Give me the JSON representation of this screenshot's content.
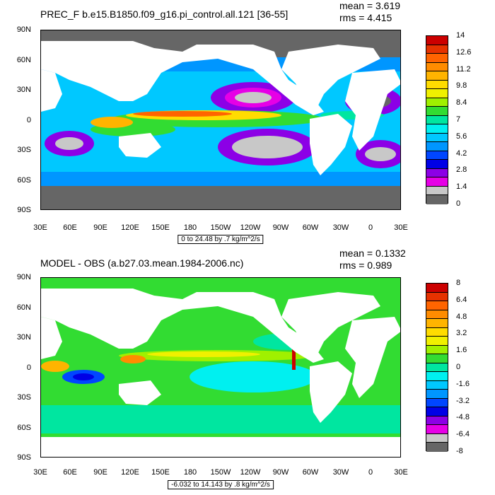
{
  "chart_data": [
    {
      "type": "heatmap",
      "title": "PREC_F b.e15.B1850.f09_g16.pi_control.all.121 [36-55]",
      "mean_text": "mean = 3.619",
      "rms_text": "rms = 4.415",
      "range_note": "0 to 24.48 by .7 kg/m^2/s",
      "y_tick_labels": [
        "90N",
        "60N",
        "30N",
        "0",
        "30S",
        "60S",
        "90S"
      ],
      "x_tick_labels": [
        "30E",
        "60E",
        "90E",
        "120E",
        "150E",
        "180",
        "150W",
        "120W",
        "90W",
        "60W",
        "30W",
        "0",
        "30E"
      ],
      "colorbar_labels": [
        "14",
        "12.6",
        "11.2",
        "9.8",
        "8.4",
        "7",
        "5.6",
        "4.2",
        "2.8",
        "1.4",
        "0"
      ],
      "colorbar_colors": [
        "#cc0000",
        "#e63200",
        "#ff6400",
        "#ff8c00",
        "#ffb400",
        "#ffdc00",
        "#f0f000",
        "#a0f000",
        "#32dc32",
        "#00e6a0",
        "#00f0f0",
        "#00c8ff",
        "#0096ff",
        "#0046ff",
        "#0000e6",
        "#8c00e6",
        "#e600e6",
        "#c8c8c8",
        "#666666"
      ],
      "colorbar_levels": [
        0,
        0.7,
        1.4,
        2.1,
        2.8,
        3.5,
        4.2,
        4.9,
        5.6,
        6.3,
        7,
        7.7,
        8.4,
        9.1,
        9.8,
        10.5,
        11.2,
        11.9,
        12.6,
        13.3,
        14
      ]
    },
    {
      "type": "heatmap",
      "title": "MODEL - OBS (a.b27.03.mean.1984-2006.nc)",
      "mean_text": "mean = 0.1332",
      "rms_text": "rms = 0.989",
      "range_note": "-6.032 to 14.143 by .8 kg/m^2/s",
      "y_tick_labels": [
        "90N",
        "60N",
        "30N",
        "0",
        "30S",
        "60S",
        "90S"
      ],
      "x_tick_labels": [
        "30E",
        "60E",
        "90E",
        "120E",
        "150E",
        "180",
        "150W",
        "120W",
        "90W",
        "60W",
        "30W",
        "0",
        "30E"
      ],
      "colorbar_labels": [
        "8",
        "6.4",
        "4.8",
        "3.2",
        "1.6",
        "0",
        "-1.6",
        "-3.2",
        "-4.8",
        "-6.4",
        "-8"
      ],
      "colorbar_colors": [
        "#cc0000",
        "#e63200",
        "#ff6400",
        "#ff8c00",
        "#ffb400",
        "#ffdc00",
        "#f0f000",
        "#a0f000",
        "#32dc32",
        "#00e6a0",
        "#00f0f0",
        "#00c8ff",
        "#0096ff",
        "#0046ff",
        "#0000e6",
        "#8c00e6",
        "#e600e6",
        "#c8c8c8",
        "#666666"
      ]
    }
  ]
}
